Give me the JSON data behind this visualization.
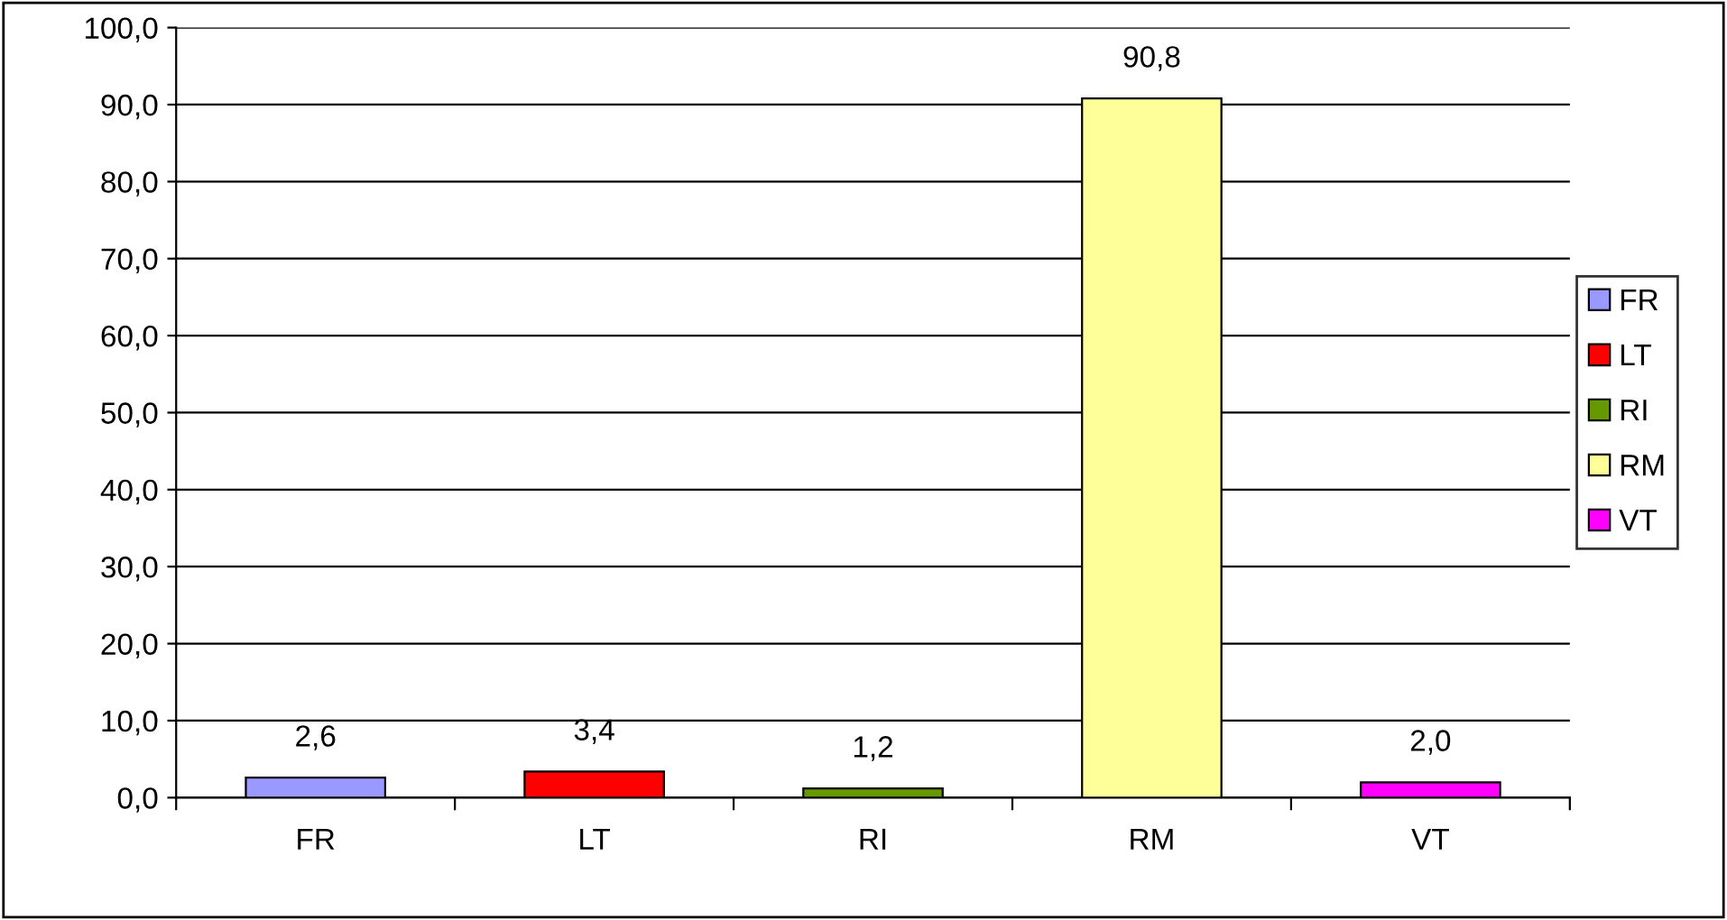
{
  "chart_data": {
    "type": "bar",
    "categories": [
      "FR",
      "LT",
      "RI",
      "RM",
      "VT"
    ],
    "stacked": true,
    "series": [
      {
        "name": "FR",
        "color": "#9999ff",
        "values": [
          2.6,
          null,
          null,
          null,
          null
        ],
        "value_labels": [
          "2,6",
          null,
          null,
          null,
          null
        ]
      },
      {
        "name": "LT",
        "color": "#ff0000",
        "values": [
          null,
          3.4,
          null,
          null,
          null
        ],
        "value_labels": [
          null,
          "3,4",
          null,
          null,
          null
        ]
      },
      {
        "name": "RI",
        "color": "#669900",
        "values": [
          null,
          null,
          1.2,
          null,
          null
        ],
        "value_labels": [
          null,
          null,
          "1,2",
          null,
          null
        ]
      },
      {
        "name": "RM",
        "color": "#ffff99",
        "values": [
          null,
          null,
          null,
          90.8,
          null
        ],
        "value_labels": [
          null,
          null,
          null,
          "90,8",
          null
        ]
      },
      {
        "name": "VT",
        "color": "#ff00ff",
        "values": [
          null,
          null,
          null,
          null,
          2.0
        ],
        "value_labels": [
          null,
          null,
          null,
          null,
          "2,0"
        ]
      }
    ],
    "ylim": [
      0,
      100
    ],
    "yticks": [
      {
        "value": 0,
        "label": "0,0"
      },
      {
        "value": 10,
        "label": "10,0"
      },
      {
        "value": 20,
        "label": "20,0"
      },
      {
        "value": 30,
        "label": "30,0"
      },
      {
        "value": 40,
        "label": "40,0"
      },
      {
        "value": 50,
        "label": "50,0"
      },
      {
        "value": 60,
        "label": "60,0"
      },
      {
        "value": 70,
        "label": "70,0"
      },
      {
        "value": 80,
        "label": "80,0"
      },
      {
        "value": 90,
        "label": "90,0"
      },
      {
        "value": 100,
        "label": "100,0"
      }
    ],
    "grid": "y",
    "legend": "right"
  }
}
